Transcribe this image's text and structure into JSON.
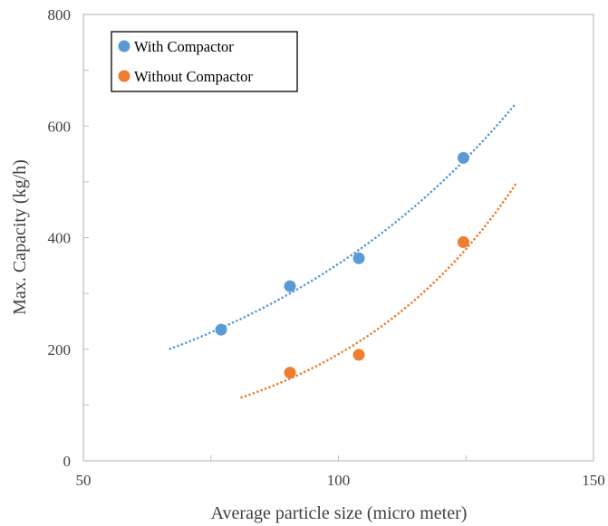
{
  "chart_data": {
    "type": "scatter",
    "title": "",
    "xlabel": "Average particle size (micro meter)",
    "ylabel": "Max. Capacity (kg/h)",
    "xlim": [
      50,
      150
    ],
    "ylim": [
      0,
      800
    ],
    "xticks": [
      50,
      100,
      150
    ],
    "yticks": [
      0,
      200,
      400,
      600,
      800
    ],
    "grid": false,
    "legend_position": "top-left",
    "series": [
      {
        "name": "With Compactor",
        "color": "#5B9BD5",
        "x": [
          77,
          90.5,
          104,
          124.5
        ],
        "y": [
          235,
          313,
          363,
          543
        ],
        "trendline": {
          "type": "exponential",
          "x_range": [
            67,
            134.5
          ],
          "style": "dotted"
        }
      },
      {
        "name": "Without Compactor",
        "color": "#ED7D31",
        "x": [
          90.5,
          104,
          124.5
        ],
        "y": [
          158,
          190,
          392
        ],
        "trendline": {
          "type": "exponential",
          "x_range": [
            81,
            135
          ],
          "style": "dotted"
        }
      }
    ]
  }
}
